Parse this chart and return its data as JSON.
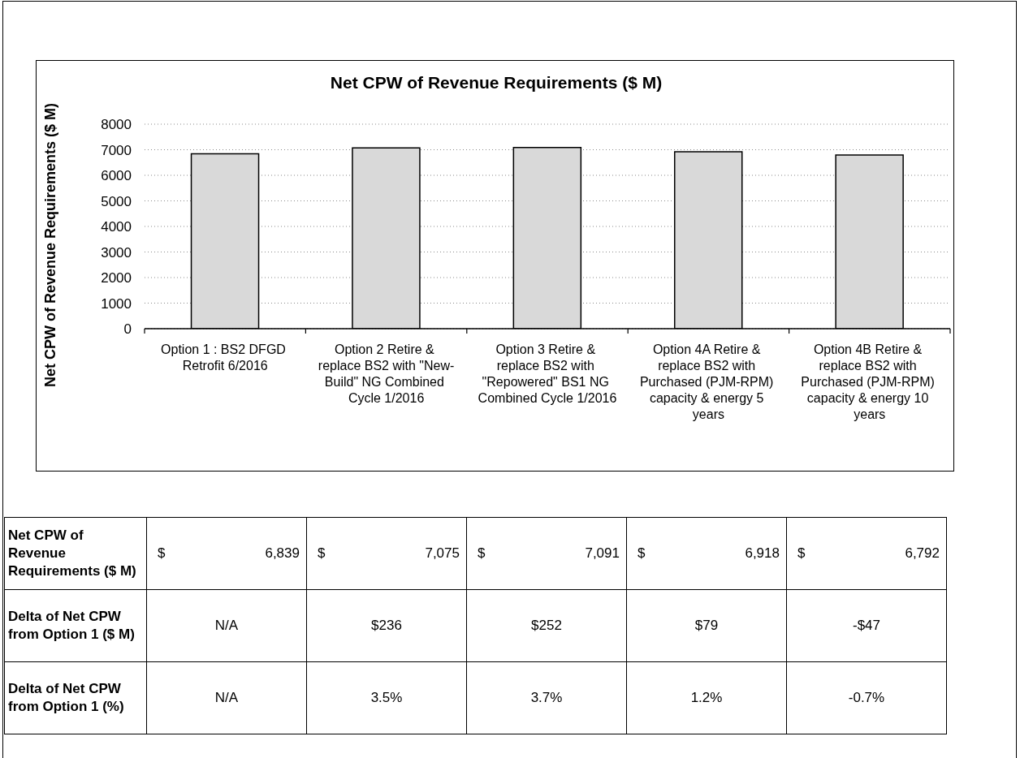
{
  "chart_data": {
    "type": "bar",
    "title": "Net CPW of Revenue Requirements ($ M)",
    "ylabel": "Net CPW of Revenue Requirements ($ M)",
    "categories": [
      "Option 1 : BS2 DFGD Retrofit 6/2016",
      "Option 2 Retire & replace BS2 with \"New-Build\" NG Combined Cycle 1/2016",
      "Option 3 Retire & replace BS2 with \"Repowered\" BS1 NG Combined Cycle 1/2016",
      "Option 4A Retire & replace BS2 with Purchased (PJM-RPM) capacity & energy 5 years",
      "Option 4B Retire & replace BS2 with Purchased (PJM-RPM) capacity & energy 10 years"
    ],
    "values": [
      6839,
      7075,
      7091,
      6918,
      6792
    ],
    "color": "#d9d9d9",
    "ylim": [
      0,
      8000
    ],
    "yticks": [
      0,
      1000,
      2000,
      3000,
      4000,
      5000,
      6000,
      7000,
      8000
    ],
    "grid": "y",
    "value_labels": [
      "$ 6,839",
      "$ 7,075",
      "$ 7,091",
      "$ 6,918",
      "$ 6,792"
    ],
    "annotations": [
      "Net CPW of Revenue Requirements ($ M)",
      "Delta of Net CPW from Option 1 ($ M)",
      "N/A",
      "$236",
      "$252",
      "$79",
      "-$47",
      "Delta of Net CPW from Option 1 (%)",
      "N/A",
      "3.5%",
      "3.7%",
      "1.2%",
      "-0.7%"
    ]
  }
}
